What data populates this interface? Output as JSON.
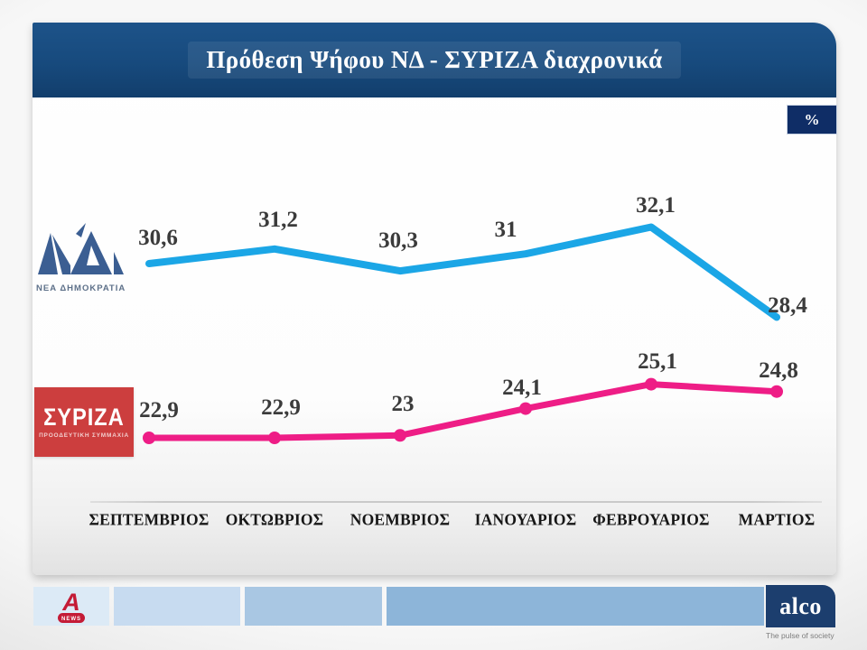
{
  "header": {
    "title": "Πρόθεση Ψήφου ΝΔ  - ΣΥΡΙΖΑ διαχρονικά",
    "unit_badge": "%"
  },
  "chart_data": {
    "type": "line",
    "categories": [
      "ΣΕΠΤΕΜΒΡΙΟΣ",
      "ΟΚΤΩΒΡΙΟΣ",
      "ΝΟΕΜΒΡΙΟΣ",
      "ΙΑΝΟΥΑΡΙΟΣ",
      "ΦΕΒΡΟΥΑΡΙΟΣ",
      "ΜΑΡΤΙΟΣ"
    ],
    "series": [
      {
        "name": "ΝΔ",
        "color": "#1ba6e6",
        "values": [
          30.6,
          31.2,
          30.3,
          31,
          32.1,
          28.4
        ],
        "labels": [
          "30,6",
          "31,2",
          "30,3",
          "31",
          "32,1",
          "28,4"
        ],
        "markers": false
      },
      {
        "name": "ΣΥΡΙΖΑ",
        "color": "#ee1d86",
        "values": [
          22.9,
          22.9,
          23,
          24.1,
          25.1,
          24.8
        ],
        "labels": [
          "22,9",
          "22,9",
          "23",
          "24,1",
          "25,1",
          "24,8"
        ],
        "markers": true
      }
    ],
    "title": "Πρόθεση Ψήφου ΝΔ - ΣΥΡΙΖΑ διαχρονικά",
    "xlabel": "",
    "ylabel": "%",
    "grid": false,
    "legend_position": "left-logos",
    "value_format": "comma-decimal"
  },
  "logos": {
    "nd": {
      "caption": "ΝΕΑ ΔΗΜΟΚΡΑΤΙΑ"
    },
    "syriza": {
      "title": "ΣΥΡΙΖΑ",
      "subtitle": "ΠΡΟΟΔΕΥΤΙΚΗ ΣΥΜΜΑΧΙΑ"
    },
    "alpha_news": {
      "label": "NEWS"
    },
    "alco": {
      "name": "alco",
      "tagline": "The pulse of society"
    }
  },
  "colors": {
    "header_bg": "#174a7d",
    "badge_bg": "#0f2d66",
    "nd_line": "#1ba6e6",
    "syriza_line": "#ee1d86",
    "syriza_logo_bg": "#cc3e3e",
    "alpha_red": "#c41b36",
    "alco_navy": "#1c3e6e"
  }
}
